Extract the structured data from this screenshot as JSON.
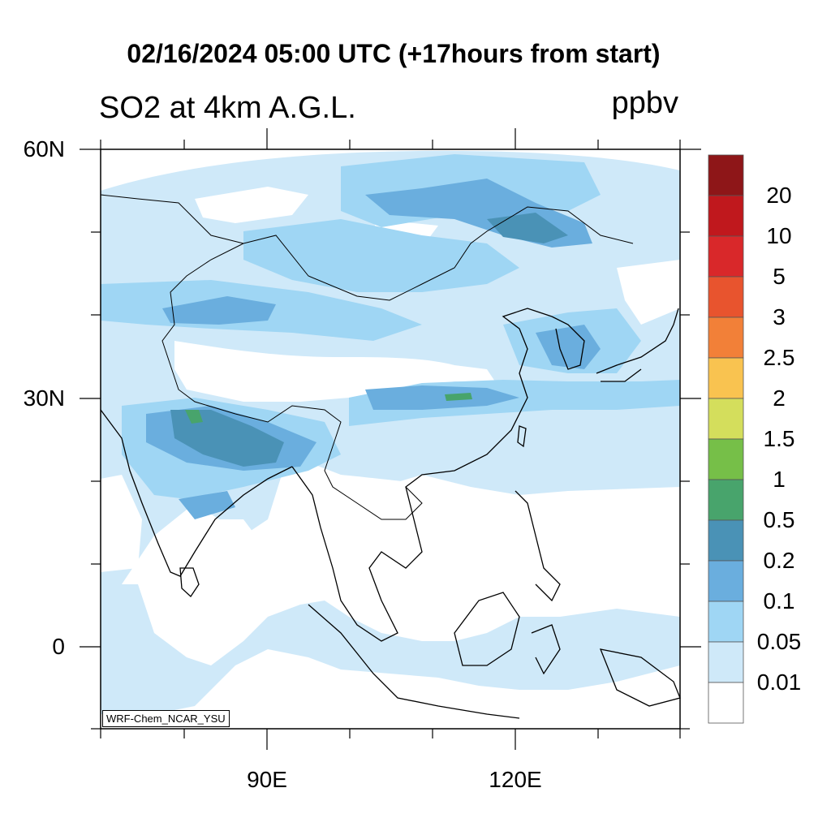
{
  "title": "02/16/2024 05:00 UTC (+17hours from start)",
  "subtitle": "SO2 at 4km A.G.L.",
  "units": "ppbv",
  "credit": "WRF-Chem_NCAR_YSU",
  "lat_ticks": [
    "60N",
    "30N",
    "0"
  ],
  "lon_ticks": [
    "90E",
    "120E"
  ],
  "colorbar": {
    "labels": [
      "20",
      "10",
      "5",
      "3",
      "2.5",
      "2",
      "1.5",
      "1",
      "0.5",
      "0.2",
      "0.1",
      "0.05",
      "0.01"
    ],
    "colors": [
      "#8e1618",
      "#c0181d",
      "#d9282a",
      "#e8542e",
      "#f28038",
      "#f9c350",
      "#d4de5c",
      "#76bf48",
      "#48a46c",
      "#4a92b6",
      "#6aaede",
      "#9fd6f4",
      "#cfe9f9",
      "#ffffff"
    ]
  },
  "field_colors": {
    "light": "#cfe9f9",
    "mid": "#9fd6f4",
    "strong": "#6aaede",
    "deep": "#4a92b6",
    "green": "#48a46c"
  }
}
